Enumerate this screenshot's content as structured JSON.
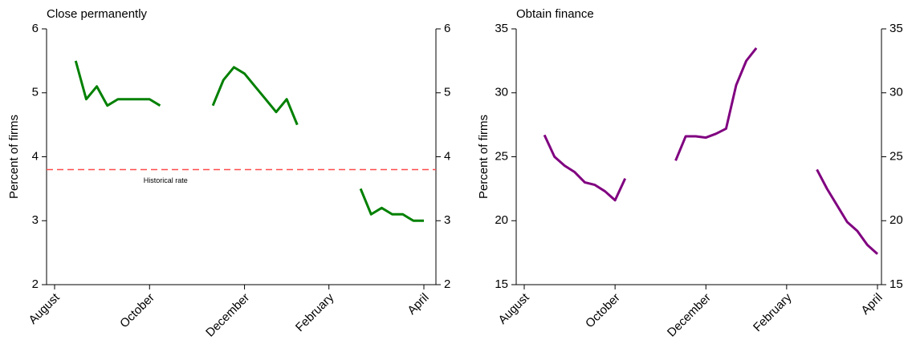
{
  "chart_data": [
    {
      "type": "line",
      "title": "Close permanently",
      "y_label": "Percent of firms",
      "categories": [
        "August",
        null,
        null,
        null,
        null,
        null,
        null,
        null,
        null,
        "October",
        null,
        null,
        null,
        null,
        null,
        null,
        null,
        null,
        "December",
        null,
        null,
        null,
        null,
        null,
        null,
        null,
        "February",
        null,
        null,
        null,
        null,
        null,
        null,
        null,
        null,
        "April"
      ],
      "series": [
        {
          "color": "#008000",
          "values": [
            null,
            null,
            5.5,
            4.9,
            5.1,
            4.8,
            4.9,
            4.9,
            4.9,
            4.9,
            4.8,
            null,
            null,
            null,
            null,
            4.8,
            5.2,
            5.4,
            5.3,
            5.1,
            4.9,
            4.7,
            4.9,
            4.5,
            null,
            null,
            null,
            null,
            null,
            3.5,
            3.1,
            3.2,
            3.1,
            3.1,
            3.0,
            3.0
          ]
        }
      ],
      "ylim": [
        2,
        6
      ],
      "yticks": [
        2,
        3,
        4,
        5,
        6
      ],
      "reference_line": {
        "value": 3.8,
        "label": "Historical rate",
        "color": "#ff4d4d"
      }
    },
    {
      "type": "line",
      "title": "Obtain finance",
      "y_label": "Percent of firms",
      "categories": [
        "August",
        null,
        null,
        null,
        null,
        null,
        null,
        null,
        null,
        "October",
        null,
        null,
        null,
        null,
        null,
        null,
        null,
        null,
        "December",
        null,
        null,
        null,
        null,
        null,
        null,
        null,
        "February",
        null,
        null,
        null,
        null,
        null,
        null,
        null,
        null,
        "April"
      ],
      "series": [
        {
          "color": "#800080",
          "values": [
            null,
            null,
            26.7,
            25.0,
            24.3,
            23.8,
            23.0,
            22.8,
            22.3,
            21.6,
            23.3,
            null,
            null,
            null,
            null,
            24.7,
            26.6,
            26.6,
            26.5,
            26.8,
            27.2,
            30.6,
            32.5,
            33.5,
            null,
            null,
            null,
            null,
            null,
            24.0,
            22.5,
            21.2,
            19.9,
            19.2,
            18.1,
            17.4
          ]
        }
      ],
      "ylim": [
        15,
        35
      ],
      "yticks": [
        15,
        20,
        25,
        30,
        35
      ]
    }
  ]
}
